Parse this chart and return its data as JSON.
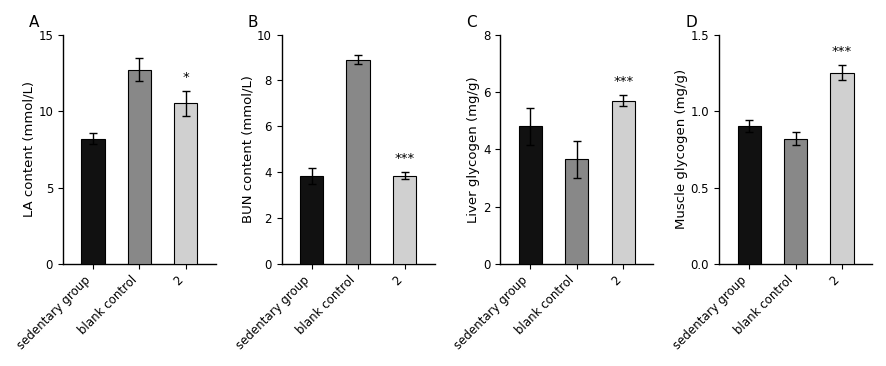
{
  "panels": [
    {
      "label": "A",
      "ylabel": "LA content (mmol/L)",
      "ylim": [
        0,
        15
      ],
      "yticks": [
        0,
        5,
        10,
        15
      ],
      "categories": [
        "sedentary group",
        "blank control",
        "2"
      ],
      "values": [
        8.2,
        12.7,
        10.5
      ],
      "errors": [
        0.35,
        0.75,
        0.8
      ],
      "colors": [
        "#111111",
        "#888888",
        "#d0d0d0"
      ],
      "sig_bar_idx": 2,
      "sig_text": "*"
    },
    {
      "label": "B",
      "ylabel": "BUN content (mmol/L)",
      "ylim": [
        0,
        10
      ],
      "yticks": [
        0,
        2,
        4,
        6,
        8,
        10
      ],
      "categories": [
        "sedentary group",
        "blank control",
        "2"
      ],
      "values": [
        3.85,
        8.9,
        3.85
      ],
      "errors": [
        0.35,
        0.2,
        0.15
      ],
      "colors": [
        "#111111",
        "#888888",
        "#d0d0d0"
      ],
      "sig_bar_idx": 2,
      "sig_text": "***"
    },
    {
      "label": "C",
      "ylabel": "Liver glycogen (mg/g)",
      "ylim": [
        0,
        8
      ],
      "yticks": [
        0,
        2,
        4,
        6,
        8
      ],
      "categories": [
        "sedentary group",
        "blank control",
        "2"
      ],
      "values": [
        4.8,
        3.65,
        5.7
      ],
      "errors": [
        0.65,
        0.65,
        0.2
      ],
      "colors": [
        "#111111",
        "#888888",
        "#d0d0d0"
      ],
      "sig_bar_idx": 2,
      "sig_text": "***"
    },
    {
      "label": "D",
      "ylabel": "Muscle glycogen (mg/g)",
      "ylim": [
        0,
        1.5
      ],
      "yticks": [
        0.0,
        0.5,
        1.0,
        1.5
      ],
      "categories": [
        "sedentary group",
        "blank control",
        "2"
      ],
      "values": [
        0.9,
        0.82,
        1.25
      ],
      "errors": [
        0.04,
        0.04,
        0.05
      ],
      "colors": [
        "#111111",
        "#888888",
        "#d0d0d0"
      ],
      "sig_bar_idx": 2,
      "sig_text": "***"
    }
  ],
  "bar_width": 0.5,
  "tick_fontsize": 8.5,
  "label_fontsize": 9.5,
  "panel_label_fontsize": 11
}
